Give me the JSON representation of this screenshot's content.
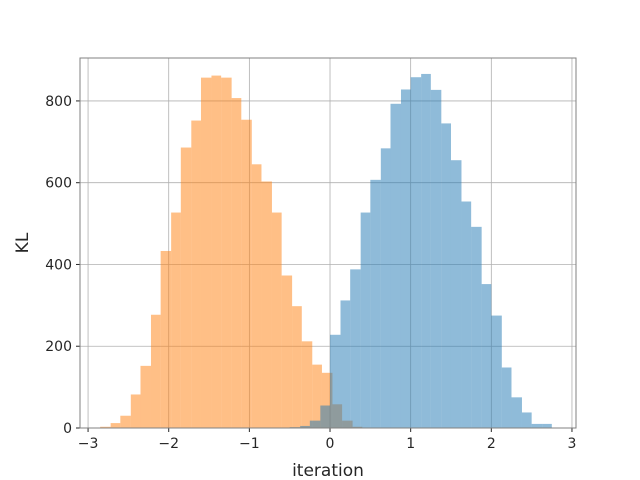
{
  "chart_data": {
    "type": "histogram",
    "xlabel": "iteration",
    "ylabel": "KL",
    "xlim": [
      -3.1,
      3.05
    ],
    "ylim": [
      0,
      905
    ],
    "xticks": [
      -3,
      -2,
      -1,
      0,
      1,
      2,
      3
    ],
    "yticks": [
      0,
      200,
      400,
      600,
      800
    ],
    "grid": true,
    "series": [
      {
        "color": "#ff7f0e",
        "opacity": 0.5,
        "bin_edges": [
          -2.85,
          -2.72,
          -2.6,
          -2.47,
          -2.35,
          -2.22,
          -2.1,
          -1.97,
          -1.85,
          -1.72,
          -1.6,
          -1.47,
          -1.35,
          -1.22,
          -1.1,
          -0.97,
          -0.85,
          -0.72,
          -0.6,
          -0.47,
          -0.35,
          -0.22,
          -0.1,
          0.03,
          0.15,
          0.28,
          0.4
        ],
        "counts": [
          3,
          12,
          30,
          82,
          152,
          277,
          433,
          527,
          686,
          752,
          857,
          862,
          857,
          807,
          754,
          645,
          603,
          527,
          373,
          298,
          212,
          155,
          135,
          58,
          18,
          3
        ]
      },
      {
        "color": "#1f77b4",
        "opacity": 0.5,
        "bin_edges": [
          -0.5,
          -0.37,
          -0.25,
          -0.12,
          0.0,
          0.13,
          0.25,
          0.38,
          0.5,
          0.63,
          0.75,
          0.88,
          1.0,
          1.13,
          1.25,
          1.38,
          1.5,
          1.63,
          1.75,
          1.88,
          2.0,
          2.13,
          2.25,
          2.38,
          2.5,
          2.63,
          2.75
        ],
        "counts": [
          2,
          5,
          18,
          55,
          228,
          312,
          388,
          527,
          607,
          684,
          793,
          828,
          858,
          866,
          827,
          745,
          655,
          554,
          492,
          352,
          275,
          148,
          75,
          38,
          10,
          10
        ]
      }
    ]
  }
}
